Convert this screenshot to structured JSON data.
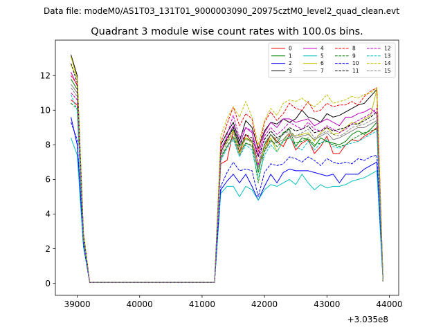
{
  "chart_data": {
    "type": "line",
    "suptitle": "Data file: modeM0/AS1T03_131T01_9000003090_20975cztM0_level2_quad_clean.evt",
    "title": "Quadrant 3 module wise count rates with 100.0s bins.",
    "xlabel": "",
    "ylabel": "",
    "x_offset_label": "+3.035e8",
    "xlim": [
      38650,
      44150
    ],
    "ylim": [
      -0.7,
      14.05
    ],
    "xticks": [
      39000,
      40000,
      41000,
      42000,
      43000,
      44000
    ],
    "xtick_labels": [
      "39000",
      "40000",
      "41000",
      "42000",
      "43000",
      "44000"
    ],
    "yticks": [
      0,
      2,
      4,
      6,
      8,
      10,
      12
    ],
    "ytick_labels": [
      "0",
      "2",
      "4",
      "6",
      "8",
      "10",
      "12"
    ],
    "grid": false,
    "legend_position": "top-right",
    "legend_columns": 4,
    "x": [
      38900,
      39000,
      39100,
      39200,
      39300,
      39400,
      39500,
      39600,
      39700,
      39800,
      39900,
      40000,
      40100,
      40200,
      40300,
      40400,
      40500,
      40600,
      40700,
      40800,
      40900,
      41000,
      41100,
      41200,
      41300,
      41400,
      41500,
      41600,
      41700,
      41800,
      41900,
      42000,
      42100,
      42200,
      42300,
      42400,
      42500,
      42600,
      42700,
      42800,
      42900,
      43000,
      43100,
      43200,
      43300,
      43400,
      43500,
      43600,
      43700,
      43800,
      43900
    ],
    "series": [
      {
        "name": "0",
        "color": "#ff0000",
        "dash": "solid",
        "values": [
          10.6,
          10.3,
          2.2,
          0.05,
          0.05,
          0.05,
          0.05,
          0.05,
          0.05,
          0.05,
          0.05,
          0.05,
          0.05,
          0.05,
          0.05,
          0.05,
          0.05,
          0.05,
          0.05,
          0.05,
          0.05,
          0.05,
          0.05,
          0.05,
          6.9,
          7.1,
          8.8,
          7.6,
          8.6,
          8.2,
          6.9,
          7.8,
          8.6,
          8.2,
          7.9,
          8.6,
          7.7,
          8.1,
          8.3,
          7.5,
          7.9,
          8.5,
          7.5,
          7.5,
          8.0,
          8.3,
          8.2,
          8.5,
          8.7,
          9.0,
          0.1
        ]
      },
      {
        "name": "1",
        "color": "#008000",
        "dash": "solid",
        "values": [
          11.8,
          11.2,
          2.6,
          0.05,
          0.05,
          0.05,
          0.05,
          0.05,
          0.05,
          0.05,
          0.05,
          0.05,
          0.05,
          0.05,
          0.05,
          0.05,
          0.05,
          0.05,
          0.05,
          0.05,
          0.05,
          0.05,
          0.05,
          0.05,
          7.5,
          8.4,
          8.9,
          7.9,
          8.4,
          8.2,
          6.4,
          8.0,
          8.6,
          8.1,
          8.7,
          8.9,
          7.9,
          8.4,
          8.3,
          7.9,
          8.4,
          8.2,
          8.1,
          8.0,
          8.2,
          8.6,
          8.8,
          8.6,
          8.9,
          9.3,
          0.1
        ]
      },
      {
        "name": "2",
        "color": "#0000ff",
        "dash": "solid",
        "values": [
          9.6,
          8.0,
          2.3,
          0.05,
          0.05,
          0.05,
          0.05,
          0.05,
          0.05,
          0.05,
          0.05,
          0.05,
          0.05,
          0.05,
          0.05,
          0.05,
          0.05,
          0.05,
          0.05,
          0.05,
          0.05,
          0.05,
          0.05,
          0.05,
          5.4,
          5.9,
          6.3,
          5.8,
          6.3,
          5.6,
          4.8,
          5.6,
          6.3,
          5.8,
          6.4,
          6.6,
          6.5,
          6.5,
          6.5,
          6.4,
          6.3,
          6.2,
          6.3,
          5.8,
          6.3,
          6.3,
          6.3,
          6.6,
          6.8,
          7.0,
          0.1
        ]
      },
      {
        "name": "3",
        "color": "#000000",
        "dash": "solid",
        "values": [
          13.2,
          12.0,
          2.9,
          0.05,
          0.05,
          0.05,
          0.05,
          0.05,
          0.05,
          0.05,
          0.05,
          0.05,
          0.05,
          0.05,
          0.05,
          0.05,
          0.05,
          0.05,
          0.05,
          0.05,
          0.05,
          0.05,
          0.05,
          0.05,
          8.0,
          8.7,
          9.3,
          8.2,
          9.4,
          9.0,
          7.8,
          8.8,
          9.3,
          9.2,
          9.5,
          9.3,
          9.5,
          10.0,
          9.6,
          9.5,
          9.3,
          9.8,
          9.6,
          9.7,
          9.9,
          10.1,
          10.3,
          10.4,
          10.8,
          11.2,
          0.1
        ]
      },
      {
        "name": "4",
        "color": "#c000c0",
        "dash": "solid",
        "values": [
          12.2,
          11.4,
          2.7,
          0.05,
          0.05,
          0.05,
          0.05,
          0.05,
          0.05,
          0.05,
          0.05,
          0.05,
          0.05,
          0.05,
          0.05,
          0.05,
          0.05,
          0.05,
          0.05,
          0.05,
          0.05,
          0.05,
          0.05,
          0.05,
          7.8,
          8.4,
          9.1,
          8.0,
          9.0,
          8.7,
          7.4,
          8.7,
          9.3,
          9.0,
          9.5,
          9.5,
          9.3,
          9.4,
          9.5,
          9.1,
          9.3,
          9.5,
          9.3,
          9.1,
          9.6,
          9.6,
          9.8,
          9.9,
          10.1,
          9.8,
          0.1
        ]
      },
      {
        "name": "5",
        "color": "#00bfbf",
        "dash": "solid",
        "values": [
          8.4,
          7.4,
          2.1,
          0.05,
          0.05,
          0.05,
          0.05,
          0.05,
          0.05,
          0.05,
          0.05,
          0.05,
          0.05,
          0.05,
          0.05,
          0.05,
          0.05,
          0.05,
          0.05,
          0.05,
          0.05,
          0.05,
          0.05,
          0.05,
          5.2,
          5.6,
          5.6,
          5.0,
          5.6,
          5.4,
          4.8,
          5.4,
          5.7,
          5.6,
          5.8,
          6.0,
          5.7,
          6.3,
          5.8,
          5.4,
          5.7,
          5.5,
          5.6,
          5.6,
          5.7,
          5.9,
          6.0,
          6.1,
          6.3,
          6.5,
          0.1
        ]
      },
      {
        "name": "6",
        "color": "#bfbf00",
        "dash": "solid",
        "values": [
          13.1,
          11.8,
          2.8,
          0.05,
          0.05,
          0.05,
          0.05,
          0.05,
          0.05,
          0.05,
          0.05,
          0.05,
          0.05,
          0.05,
          0.05,
          0.05,
          0.05,
          0.05,
          0.05,
          0.05,
          0.05,
          0.05,
          0.05,
          0.05,
          7.6,
          8.2,
          8.8,
          7.5,
          8.4,
          8.1,
          6.9,
          7.8,
          8.4,
          7.6,
          8.2,
          8.7,
          8.5,
          8.6,
          8.7,
          8.2,
          8.7,
          9.0,
          8.6,
          8.7,
          9.0,
          9.3,
          9.2,
          9.5,
          9.7,
          11.2,
          0.1
        ]
      },
      {
        "name": "7",
        "color": "#808080",
        "dash": "solid",
        "values": [
          11.5,
          11.0,
          2.5,
          0.05,
          0.05,
          0.05,
          0.05,
          0.05,
          0.05,
          0.05,
          0.05,
          0.05,
          0.05,
          0.05,
          0.05,
          0.05,
          0.05,
          0.05,
          0.05,
          0.05,
          0.05,
          0.05,
          0.05,
          0.05,
          7.2,
          7.9,
          8.4,
          7.4,
          8.1,
          7.9,
          6.7,
          7.6,
          8.2,
          8.1,
          8.3,
          8.7,
          8.4,
          8.5,
          8.6,
          8.3,
          8.5,
          8.7,
          8.3,
          8.4,
          8.6,
          8.8,
          9.0,
          9.0,
          9.2,
          9.4,
          0.1
        ]
      },
      {
        "name": "8",
        "color": "#ff0000",
        "dash": "dashed",
        "values": [
          12.0,
          11.5,
          2.7,
          0.05,
          0.05,
          0.05,
          0.05,
          0.05,
          0.05,
          0.05,
          0.05,
          0.05,
          0.05,
          0.05,
          0.05,
          0.05,
          0.05,
          0.05,
          0.05,
          0.05,
          0.05,
          0.05,
          0.05,
          0.05,
          8.1,
          9.2,
          10.2,
          9.1,
          9.8,
          9.5,
          7.6,
          9.3,
          9.9,
          9.4,
          9.8,
          10.4,
          10.1,
          10.0,
          10.5,
          9.9,
          10.0,
          10.4,
          10.2,
          10.3,
          10.3,
          10.5,
          10.3,
          10.8,
          11.1,
          11.3,
          0.1
        ]
      },
      {
        "name": "9",
        "color": "#008000",
        "dash": "dashed",
        "values": [
          10.4,
          10.1,
          2.4,
          0.05,
          0.05,
          0.05,
          0.05,
          0.05,
          0.05,
          0.05,
          0.05,
          0.05,
          0.05,
          0.05,
          0.05,
          0.05,
          0.05,
          0.05,
          0.05,
          0.05,
          0.05,
          0.05,
          0.05,
          0.05,
          7.3,
          7.9,
          8.5,
          7.6,
          8.1,
          8.0,
          5.8,
          7.7,
          8.3,
          7.9,
          8.2,
          8.4,
          8.1,
          8.2,
          8.4,
          8.0,
          8.1,
          8.2,
          8.0,
          7.9,
          8.0,
          8.3,
          8.5,
          8.7,
          8.8,
          8.9,
          0.1
        ]
      },
      {
        "name": "10",
        "color": "#0000ff",
        "dash": "dashed",
        "values": [
          9.3,
          8.3,
          2.2,
          0.05,
          0.05,
          0.05,
          0.05,
          0.05,
          0.05,
          0.05,
          0.05,
          0.05,
          0.05,
          0.05,
          0.05,
          0.05,
          0.05,
          0.05,
          0.05,
          0.05,
          0.05,
          0.05,
          0.05,
          0.05,
          5.6,
          6.4,
          7.0,
          6.5,
          6.6,
          6.5,
          5.0,
          6.4,
          6.9,
          6.8,
          6.9,
          7.3,
          7.2,
          7.0,
          7.3,
          7.1,
          6.8,
          7.2,
          7.0,
          6.9,
          7.0,
          6.9,
          7.2,
          7.1,
          7.3,
          7.4,
          0.1
        ]
      },
      {
        "name": "11",
        "color": "#000000",
        "dash": "dashed",
        "values": [
          12.7,
          11.6,
          2.8,
          0.05,
          0.05,
          0.05,
          0.05,
          0.05,
          0.05,
          0.05,
          0.05,
          0.05,
          0.05,
          0.05,
          0.05,
          0.05,
          0.05,
          0.05,
          0.05,
          0.05,
          0.05,
          0.05,
          0.05,
          0.05,
          7.6,
          8.3,
          9.0,
          8.0,
          8.6,
          8.4,
          7.3,
          8.3,
          8.8,
          8.4,
          8.6,
          9.0,
          8.8,
          8.9,
          9.1,
          8.7,
          8.8,
          9.0,
          8.8,
          8.9,
          9.0,
          9.2,
          9.2,
          9.4,
          9.6,
          9.9,
          0.1
        ]
      },
      {
        "name": "12",
        "color": "#c000c0",
        "dash": "dashed",
        "values": [
          11.0,
          10.6,
          2.5,
          0.05,
          0.05,
          0.05,
          0.05,
          0.05,
          0.05,
          0.05,
          0.05,
          0.05,
          0.05,
          0.05,
          0.05,
          0.05,
          0.05,
          0.05,
          0.05,
          0.05,
          0.05,
          0.05,
          0.05,
          0.05,
          7.5,
          8.6,
          9.7,
          8.4,
          9.0,
          8.8,
          6.8,
          8.5,
          9.0,
          8.6,
          8.9,
          9.3,
          9.1,
          8.9,
          9.3,
          8.9,
          8.8,
          9.1,
          8.9,
          8.7,
          8.9,
          9.2,
          9.4,
          9.6,
          9.8,
          10.1,
          0.1
        ]
      },
      {
        "name": "13",
        "color": "#00bfbf",
        "dash": "dashed",
        "values": [
          10.9,
          10.0,
          2.4,
          0.05,
          0.05,
          0.05,
          0.05,
          0.05,
          0.05,
          0.05,
          0.05,
          0.05,
          0.05,
          0.05,
          0.05,
          0.05,
          0.05,
          0.05,
          0.05,
          0.05,
          0.05,
          0.05,
          0.05,
          0.05,
          7.1,
          7.8,
          8.3,
          7.3,
          8.0,
          7.7,
          6.1,
          7.4,
          8.0,
          7.6,
          8.2,
          8.5,
          7.9,
          7.7,
          8.2,
          7.7,
          8.1,
          8.3,
          7.9,
          7.8,
          8.0,
          8.1,
          8.2,
          8.4,
          8.6,
          8.8,
          0.1
        ]
      },
      {
        "name": "14",
        "color": "#bfbf00",
        "dash": "dashed",
        "values": [
          12.6,
          11.9,
          2.9,
          0.05,
          0.05,
          0.05,
          0.05,
          0.05,
          0.05,
          0.05,
          0.05,
          0.05,
          0.05,
          0.05,
          0.05,
          0.05,
          0.05,
          0.05,
          0.05,
          0.05,
          0.05,
          0.05,
          0.05,
          0.05,
          8.5,
          9.5,
          10.2,
          9.6,
          10.5,
          9.6,
          8.0,
          9.4,
          10.1,
          9.7,
          10.4,
          10.6,
          10.5,
          10.7,
          10.4,
          10.2,
          10.5,
          10.9,
          10.4,
          10.5,
          10.6,
          10.8,
          10.7,
          10.9,
          11.0,
          11.3,
          0.1
        ]
      },
      {
        "name": "15",
        "color": "#808080",
        "dash": "dashed",
        "values": [
          11.3,
          10.8,
          2.6,
          0.05,
          0.05,
          0.05,
          0.05,
          0.05,
          0.05,
          0.05,
          0.05,
          0.05,
          0.05,
          0.05,
          0.05,
          0.05,
          0.05,
          0.05,
          0.05,
          0.05,
          0.05,
          0.05,
          0.05,
          0.05,
          7.4,
          8.1,
          8.7,
          7.8,
          8.3,
          8.2,
          6.6,
          8.1,
          8.6,
          8.3,
          8.6,
          8.8,
          8.5,
          8.7,
          8.9,
          8.4,
          8.6,
          8.8,
          8.6,
          8.5,
          8.7,
          9.0,
          9.1,
          9.2,
          9.4,
          9.6,
          0.1
        ]
      }
    ]
  }
}
